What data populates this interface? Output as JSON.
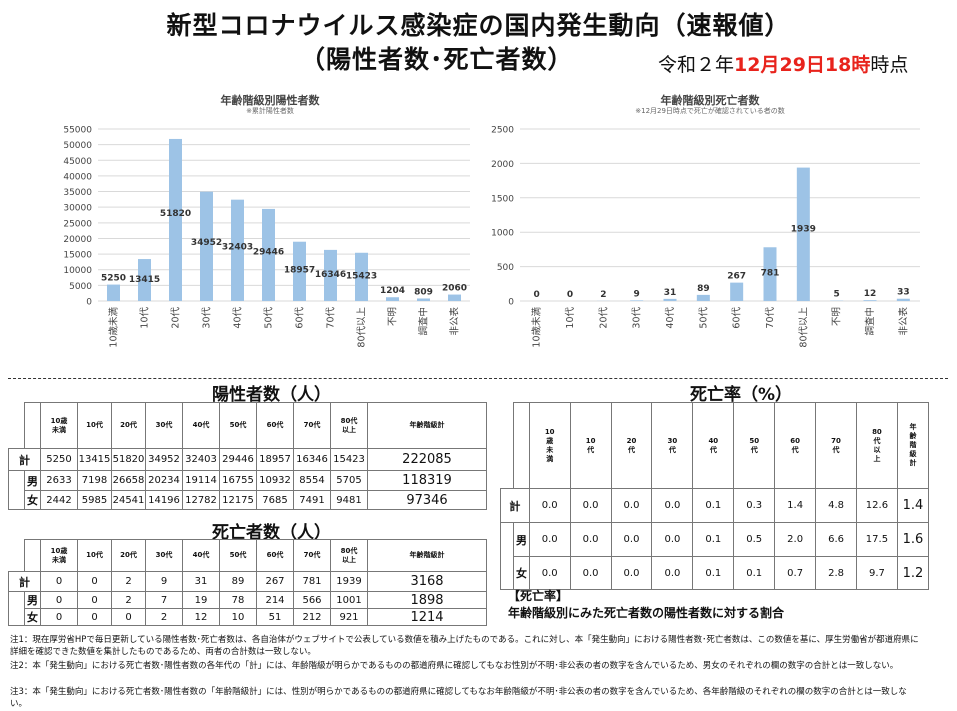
{
  "header": {
    "title_line1": "新型コロナウイルス感染症の国内発生動向（速報値）",
    "title_line2": "（陽性者数･死亡者数）",
    "date_prefix": "令和２年",
    "date_month": "12月",
    "date_day": "29日",
    "date_hour": "18時",
    "date_suffix": "時点"
  },
  "colors": {
    "bar": "#9dc3e6",
    "date_red": "#e8231c"
  },
  "chart_data": [
    {
      "type": "bar",
      "title": "年齢階級別陽性者数",
      "subtitle": "※累計陽性者数",
      "categories": [
        "10歳未満",
        "10代",
        "20代",
        "30代",
        "40代",
        "50代",
        "60代",
        "70代",
        "80代以上",
        "不明",
        "調査中",
        "非公表"
      ],
      "values": [
        5250,
        13415,
        51820,
        34952,
        32403,
        29446,
        18957,
        16346,
        15423,
        1204,
        809,
        2060
      ],
      "ylim": [
        0,
        55000
      ],
      "yticks": [
        "0",
        "5000",
        "10000",
        "15000",
        "20000",
        "25000",
        "30000",
        "35000",
        "40000",
        "45000",
        "50000",
        "55000"
      ],
      "grid": true
    },
    {
      "type": "bar",
      "title": "年齢階級別死亡者数",
      "subtitle": "※12月29日時点で死亡が確認されている者の数",
      "categories": [
        "10歳未満",
        "10代",
        "20代",
        "30代",
        "40代",
        "50代",
        "60代",
        "70代",
        "80代以上",
        "不明",
        "調査中",
        "非公表"
      ],
      "values": [
        0,
        0,
        2,
        9,
        31,
        89,
        267,
        781,
        1939,
        5,
        12,
        33
      ],
      "ylim": [
        0,
        2500
      ],
      "yticks": [
        "0",
        "500",
        "1000",
        "1500",
        "2000",
        "2500"
      ],
      "grid": true
    }
  ],
  "positives": {
    "title": "陽性者数（人）",
    "headers": [
      "10歳\n未満",
      "10代",
      "20代",
      "30代",
      "40代",
      "50代",
      "60代",
      "70代",
      "80代\n以上",
      "年齢階級計"
    ],
    "rows": [
      {
        "label": "計",
        "values": [
          "5250",
          "13415",
          "51820",
          "34952",
          "32403",
          "29446",
          "18957",
          "16346",
          "15423"
        ],
        "total": "222085"
      },
      {
        "label": "男",
        "values": [
          "2633",
          "7198",
          "26658",
          "20234",
          "19114",
          "16755",
          "10932",
          "8554",
          "5705"
        ],
        "total": "118319"
      },
      {
        "label": "女",
        "values": [
          "2442",
          "5985",
          "24541",
          "14196",
          "12782",
          "12175",
          "7685",
          "7491",
          "9481"
        ],
        "total": "97346"
      }
    ]
  },
  "deaths": {
    "title": "死亡者数（人）",
    "headers": [
      "10歳\n未満",
      "10代",
      "20代",
      "30代",
      "40代",
      "50代",
      "60代",
      "70代",
      "80代\n以上",
      "年齢階級計"
    ],
    "rows": [
      {
        "label": "計",
        "values": [
          "0",
          "0",
          "2",
          "9",
          "31",
          "89",
          "267",
          "781",
          "1939"
        ],
        "total": "3168"
      },
      {
        "label": "男",
        "values": [
          "0",
          "0",
          "2",
          "7",
          "19",
          "78",
          "214",
          "566",
          "1001"
        ],
        "total": "1898"
      },
      {
        "label": "女",
        "values": [
          "0",
          "0",
          "0",
          "2",
          "12",
          "10",
          "51",
          "212",
          "921"
        ],
        "total": "1214"
      }
    ]
  },
  "rate": {
    "title": "死亡率（%）",
    "headers": [
      "10\n歳\n未\n満",
      "10\n代",
      "20\n代",
      "30\n代",
      "40\n代",
      "50\n代",
      "60\n代",
      "70\n代",
      "80\n代\n以\n上",
      "年\n齢\n階\n級\n計"
    ],
    "rows": [
      {
        "label": "計",
        "values": [
          "0.0",
          "0.0",
          "0.0",
          "0.0",
          "0.1",
          "0.3",
          "1.4",
          "4.8",
          "12.6"
        ],
        "total": "1.4"
      },
      {
        "label": "男",
        "values": [
          "0.0",
          "0.0",
          "0.0",
          "0.0",
          "0.1",
          "0.5",
          "2.0",
          "6.6",
          "17.5"
        ],
        "total": "1.6"
      },
      {
        "label": "女",
        "values": [
          "0.0",
          "0.0",
          "0.0",
          "0.0",
          "0.1",
          "0.1",
          "0.7",
          "2.8",
          "9.7"
        ],
        "total": "1.2"
      }
    ],
    "definition_title": "【死亡率】",
    "definition_text": "年齢階級別にみた死亡者数の陽性者数に対する割合"
  },
  "notes": [
    "注1：現在厚労省HPで毎日更新している陽性者数･死亡者数は、各自治体がウェブサイトで公表している数値を積み上げたものである。これに対し、本「発生動向」における陽性者数･死亡者数は、この数値を基に、厚生労働省が都道府県に詳細を確認できた数値を集計したものであるため、両者の合計数は一致しない。",
    "注2：本「発生動向」における死亡者数･陽性者数の各年代の「計」には、年齢階級が明らかであるものの都道府県に確認してもなお性別が不明･非公表の者の数字を含んでいるため、男女のそれぞれの欄の数字の合計とは一致しない。",
    "注3：本「発生動向」における死亡者数･陽性者数の「年齢階級計」には、性別が明らかであるものの都道府県に確認してもなお年齢階級が不明･非公表の者の数字を含んでいるため、各年齢階級のそれぞれの欄の数字の合計とは一致しない。"
  ]
}
